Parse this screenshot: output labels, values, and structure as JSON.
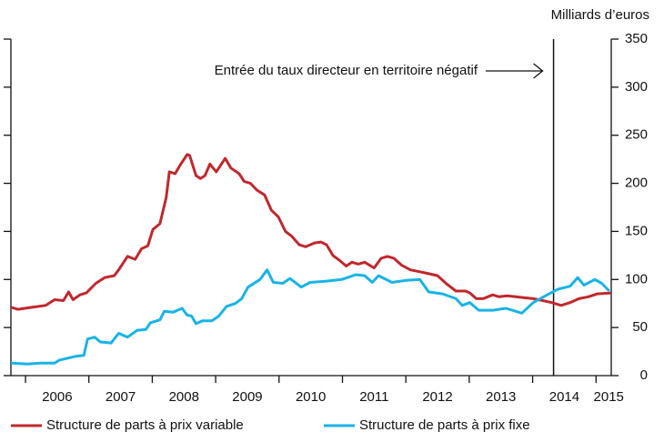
{
  "chart_data": {
    "type": "line",
    "y_axis_label": "Milliards d’euros",
    "annotation": {
      "text": "Entrée du taux directeur en territoire négatif",
      "x": 2014.33
    },
    "xlim": [
      2005.77,
      2015.24
    ],
    "xticks": [
      {
        "value": 2006.5,
        "label": "2006"
      },
      {
        "value": 2007.5,
        "label": "2007"
      },
      {
        "value": 2008.5,
        "label": "2008"
      },
      {
        "value": 2009.5,
        "label": "2009"
      },
      {
        "value": 2010.5,
        "label": "2010"
      },
      {
        "value": 2011.5,
        "label": "2011"
      },
      {
        "value": 2012.5,
        "label": "2012"
      },
      {
        "value": 2013.5,
        "label": "2013"
      },
      {
        "value": 2014.5,
        "label": "2014"
      },
      {
        "value": 2015.2,
        "label": "2015"
      }
    ],
    "ylim": [
      0,
      350
    ],
    "yticks": [
      0,
      50,
      100,
      150,
      200,
      250,
      300,
      350
    ],
    "series": [
      {
        "name": "Structure de parts à prix variable",
        "color": "#c0282d",
        "x": [
          2005.77,
          2005.88,
          2006.1,
          2006.32,
          2006.46,
          2006.6,
          2006.68,
          2006.75,
          2006.86,
          2006.96,
          2007.11,
          2007.25,
          2007.4,
          2007.47,
          2007.61,
          2007.73,
          2007.83,
          2007.93,
          2008.01,
          2008.12,
          2008.22,
          2008.27,
          2008.36,
          2008.45,
          2008.55,
          2008.59,
          2008.69,
          2008.76,
          2008.83,
          2008.91,
          2009.01,
          2009.15,
          2009.24,
          2009.37,
          2009.45,
          2009.55,
          2009.65,
          2009.77,
          2009.88,
          2009.99,
          2010.1,
          2010.2,
          2010.32,
          2010.42,
          2010.56,
          2010.66,
          2010.75,
          2010.85,
          2010.95,
          2011.06,
          2011.15,
          2011.25,
          2011.35,
          2011.5,
          2011.61,
          2011.71,
          2011.81,
          2011.93,
          2012.07,
          2012.22,
          2012.36,
          2012.5,
          2012.65,
          2012.79,
          2012.94,
          2013.01,
          2013.11,
          2013.22,
          2013.37,
          2013.47,
          2013.6,
          2013.73,
          2013.87,
          2014.01,
          2014.16,
          2014.3,
          2014.45,
          2014.59,
          2014.73,
          2014.88,
          2015.02,
          2015.24
        ],
        "values": [
          71,
          69,
          71,
          73,
          79,
          78,
          87,
          79,
          84,
          86,
          96,
          102,
          104,
          110,
          124,
          121,
          132,
          135,
          152,
          158,
          185,
          212,
          210,
          220,
          230,
          229,
          208,
          205,
          208,
          220,
          212,
          226,
          216,
          210,
          202,
          200,
          193,
          188,
          172,
          165,
          150,
          145,
          136,
          134,
          138,
          139,
          136,
          125,
          120,
          114,
          118,
          116,
          118,
          112,
          122,
          124,
          122,
          115,
          110,
          108,
          106,
          104,
          95,
          88,
          88,
          86,
          80,
          80,
          84,
          82,
          83,
          82,
          81,
          80,
          78,
          76,
          73,
          76,
          80,
          82,
          85,
          86
        ]
      },
      {
        "name": "Structure de parts à prix fixe",
        "color": "#19b3e6",
        "x": [
          2005.77,
          2006.03,
          2006.24,
          2006.46,
          2006.53,
          2006.78,
          2006.92,
          2006.98,
          2007.09,
          2007.18,
          2007.35,
          2007.47,
          2007.61,
          2007.76,
          2007.9,
          2007.97,
          2008.12,
          2008.19,
          2008.33,
          2008.47,
          2008.55,
          2008.62,
          2008.69,
          2008.79,
          2008.94,
          2009.05,
          2009.17,
          2009.31,
          2009.41,
          2009.51,
          2009.7,
          2009.81,
          2009.91,
          2010.06,
          2010.17,
          2010.35,
          2010.49,
          2010.71,
          2010.99,
          2011.21,
          2011.35,
          2011.47,
          2011.57,
          2011.78,
          2012.0,
          2012.22,
          2012.36,
          2012.58,
          2012.79,
          2012.89,
          2013.01,
          2013.15,
          2013.37,
          2013.58,
          2013.83,
          2014.01,
          2014.23,
          2014.4,
          2014.59,
          2014.71,
          2014.81,
          2014.98,
          2015.09,
          2015.21
        ],
        "values": [
          13,
          12,
          13,
          13,
          16,
          20,
          21,
          38,
          40,
          35,
          34,
          44,
          40,
          47,
          48,
          55,
          58,
          67,
          66,
          70,
          63,
          62,
          54,
          57,
          57,
          62,
          72,
          75,
          80,
          92,
          100,
          110,
          97,
          96,
          101,
          92,
          97,
          98,
          100,
          105,
          104,
          97,
          104,
          97,
          99,
          100,
          87,
          85,
          80,
          73,
          76,
          68,
          68,
          70,
          65,
          76,
          84,
          90,
          93,
          102,
          94,
          100,
          96,
          88
        ]
      }
    ]
  }
}
